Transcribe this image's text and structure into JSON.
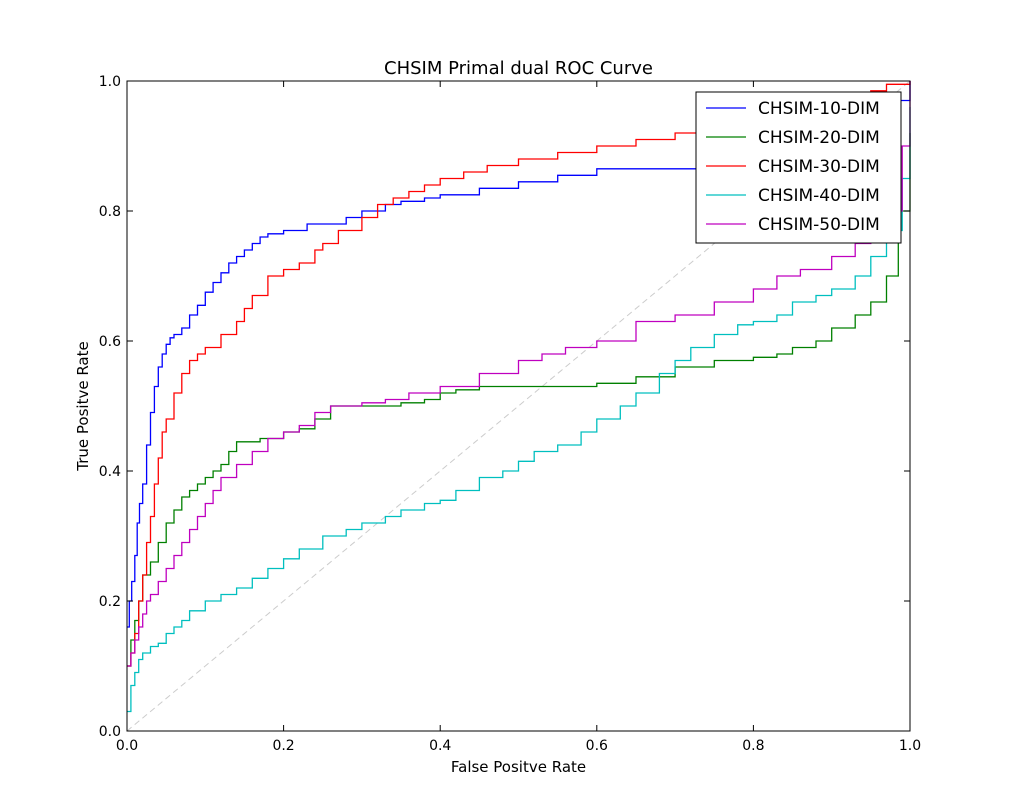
{
  "chart_data": {
    "type": "line",
    "title": "CHSIM Primal dual ROC Curve",
    "xlabel": "False Positve Rate",
    "ylabel": "True Positve Rate",
    "xlim": [
      0.0,
      1.0
    ],
    "ylim": [
      0.0,
      1.0
    ],
    "xticks": [
      "0.0",
      "0.2",
      "0.4",
      "0.6",
      "0.8",
      "1.0"
    ],
    "yticks": [
      "0.0",
      "0.2",
      "0.4",
      "0.6",
      "0.8",
      "1.0"
    ],
    "grid": false,
    "legend_position": "top-right",
    "diagonal": {
      "x": [
        0,
        1
      ],
      "y": [
        0,
        1
      ],
      "color": "#cccccc",
      "style": "dashed"
    },
    "series": [
      {
        "name": "CHSIM-10-DIM",
        "color": "#0000ff",
        "x": [
          0,
          0.003,
          0.006,
          0.01,
          0.013,
          0.016,
          0.02,
          0.025,
          0.03,
          0.035,
          0.04,
          0.045,
          0.05,
          0.055,
          0.06,
          0.07,
          0.08,
          0.09,
          0.1,
          0.11,
          0.12,
          0.13,
          0.14,
          0.15,
          0.16,
          0.17,
          0.18,
          0.2,
          0.23,
          0.26,
          0.28,
          0.3,
          0.33,
          0.35,
          0.38,
          0.4,
          0.45,
          0.5,
          0.55,
          0.6,
          0.65,
          0.7,
          0.8,
          0.9,
          0.95,
          0.97,
          1.0
        ],
        "y": [
          0.16,
          0.2,
          0.23,
          0.27,
          0.32,
          0.35,
          0.38,
          0.44,
          0.49,
          0.53,
          0.56,
          0.58,
          0.595,
          0.605,
          0.61,
          0.62,
          0.64,
          0.655,
          0.675,
          0.69,
          0.705,
          0.72,
          0.73,
          0.74,
          0.75,
          0.76,
          0.765,
          0.77,
          0.78,
          0.78,
          0.79,
          0.8,
          0.81,
          0.815,
          0.82,
          0.825,
          0.835,
          0.845,
          0.855,
          0.865,
          0.865,
          0.865,
          0.865,
          0.865,
          0.87,
          0.97,
          1.0
        ]
      },
      {
        "name": "CHSIM-20-DIM",
        "color": "#008000",
        "x": [
          0,
          0.005,
          0.01,
          0.015,
          0.02,
          0.03,
          0.04,
          0.05,
          0.06,
          0.07,
          0.08,
          0.09,
          0.1,
          0.11,
          0.12,
          0.13,
          0.14,
          0.15,
          0.17,
          0.2,
          0.22,
          0.24,
          0.26,
          0.3,
          0.35,
          0.38,
          0.4,
          0.42,
          0.45,
          0.5,
          0.55,
          0.6,
          0.65,
          0.7,
          0.75,
          0.8,
          0.83,
          0.85,
          0.88,
          0.9,
          0.93,
          0.95,
          0.97,
          0.985,
          1.0
        ],
        "y": [
          0.1,
          0.14,
          0.17,
          0.2,
          0.24,
          0.26,
          0.29,
          0.32,
          0.34,
          0.36,
          0.37,
          0.38,
          0.39,
          0.4,
          0.41,
          0.43,
          0.445,
          0.445,
          0.45,
          0.46,
          0.465,
          0.48,
          0.5,
          0.5,
          0.505,
          0.51,
          0.52,
          0.525,
          0.53,
          0.53,
          0.53,
          0.535,
          0.545,
          0.56,
          0.57,
          0.575,
          0.58,
          0.59,
          0.6,
          0.62,
          0.64,
          0.66,
          0.7,
          0.8,
          0.92
        ]
      },
      {
        "name": "CHSIM-30-DIM",
        "color": "#ff0000",
        "x": [
          0,
          0.005,
          0.01,
          0.015,
          0.02,
          0.025,
          0.03,
          0.035,
          0.04,
          0.045,
          0.05,
          0.06,
          0.07,
          0.08,
          0.09,
          0.1,
          0.12,
          0.14,
          0.15,
          0.16,
          0.18,
          0.2,
          0.22,
          0.24,
          0.25,
          0.27,
          0.3,
          0.32,
          0.34,
          0.36,
          0.38,
          0.4,
          0.43,
          0.46,
          0.5,
          0.55,
          0.6,
          0.65,
          0.7,
          0.75,
          0.8,
          0.85,
          0.9,
          0.93,
          0.95,
          0.97,
          1.0
        ],
        "y": [
          0.1,
          0.12,
          0.15,
          0.2,
          0.24,
          0.29,
          0.33,
          0.38,
          0.42,
          0.46,
          0.48,
          0.52,
          0.55,
          0.57,
          0.58,
          0.59,
          0.61,
          0.63,
          0.65,
          0.67,
          0.7,
          0.71,
          0.72,
          0.74,
          0.75,
          0.77,
          0.79,
          0.81,
          0.82,
          0.83,
          0.84,
          0.85,
          0.86,
          0.87,
          0.88,
          0.89,
          0.9,
          0.91,
          0.92,
          0.93,
          0.94,
          0.95,
          0.96,
          0.975,
          0.985,
          0.995,
          1.0
        ]
      },
      {
        "name": "CHSIM-40-DIM",
        "color": "#00bfbf",
        "x": [
          0,
          0.005,
          0.01,
          0.015,
          0.02,
          0.03,
          0.04,
          0.05,
          0.06,
          0.07,
          0.08,
          0.1,
          0.12,
          0.14,
          0.16,
          0.18,
          0.2,
          0.22,
          0.25,
          0.28,
          0.3,
          0.33,
          0.35,
          0.38,
          0.4,
          0.42,
          0.45,
          0.48,
          0.5,
          0.52,
          0.55,
          0.58,
          0.6,
          0.63,
          0.65,
          0.68,
          0.7,
          0.72,
          0.75,
          0.78,
          0.8,
          0.83,
          0.85,
          0.88,
          0.9,
          0.93,
          0.95,
          0.97,
          0.99,
          1.0
        ],
        "y": [
          0.03,
          0.07,
          0.09,
          0.11,
          0.12,
          0.13,
          0.135,
          0.15,
          0.16,
          0.17,
          0.185,
          0.2,
          0.21,
          0.22,
          0.235,
          0.25,
          0.265,
          0.28,
          0.3,
          0.31,
          0.32,
          0.33,
          0.34,
          0.35,
          0.355,
          0.37,
          0.39,
          0.4,
          0.415,
          0.43,
          0.44,
          0.46,
          0.48,
          0.5,
          0.52,
          0.55,
          0.57,
          0.59,
          0.61,
          0.625,
          0.63,
          0.64,
          0.66,
          0.67,
          0.68,
          0.7,
          0.73,
          0.77,
          0.85,
          0.96
        ]
      },
      {
        "name": "CHSIM-50-DIM",
        "color": "#bf00bf",
        "x": [
          0,
          0.005,
          0.01,
          0.015,
          0.02,
          0.025,
          0.03,
          0.04,
          0.05,
          0.06,
          0.07,
          0.08,
          0.09,
          0.1,
          0.11,
          0.12,
          0.14,
          0.16,
          0.18,
          0.2,
          0.22,
          0.24,
          0.26,
          0.3,
          0.33,
          0.36,
          0.4,
          0.45,
          0.5,
          0.53,
          0.56,
          0.6,
          0.65,
          0.7,
          0.75,
          0.8,
          0.83,
          0.86,
          0.9,
          0.93,
          0.95,
          0.97,
          0.99,
          1.0
        ],
        "y": [
          0.1,
          0.12,
          0.14,
          0.16,
          0.18,
          0.2,
          0.21,
          0.23,
          0.25,
          0.27,
          0.29,
          0.31,
          0.33,
          0.35,
          0.37,
          0.39,
          0.41,
          0.43,
          0.45,
          0.46,
          0.47,
          0.49,
          0.5,
          0.505,
          0.51,
          0.52,
          0.53,
          0.55,
          0.57,
          0.58,
          0.59,
          0.6,
          0.63,
          0.64,
          0.66,
          0.68,
          0.7,
          0.71,
          0.73,
          0.75,
          0.77,
          0.8,
          0.9,
          1.0
        ]
      }
    ]
  }
}
